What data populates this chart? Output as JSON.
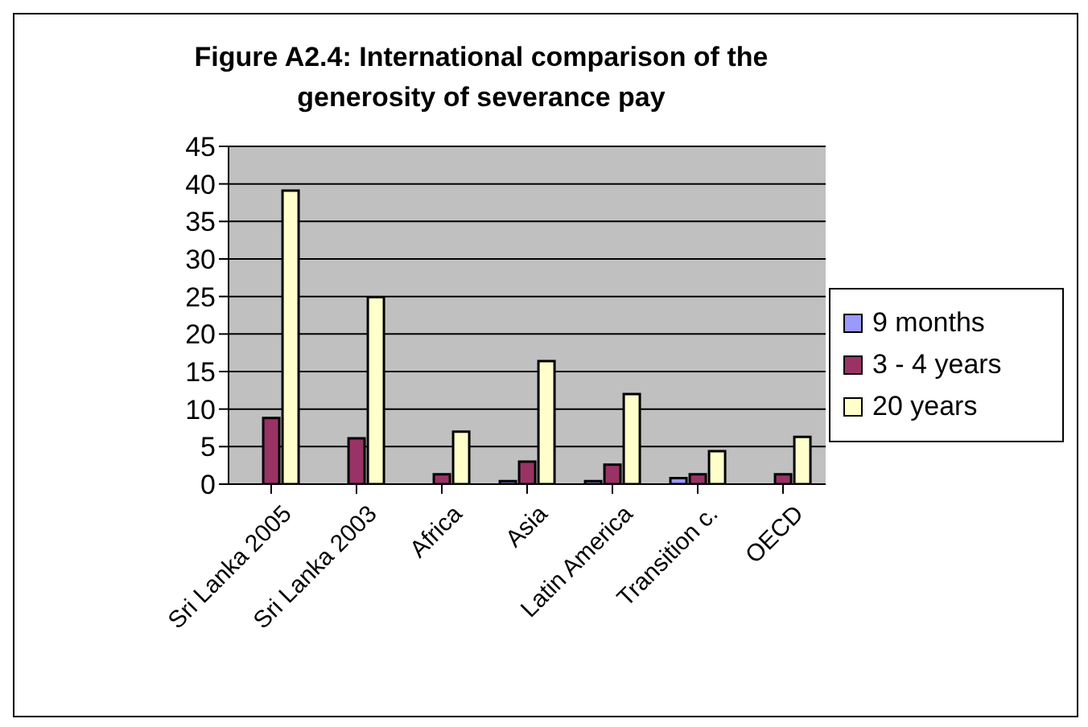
{
  "chart_data": {
    "type": "bar",
    "title": "Figure A2.4: International comparison of the generosity of severance pay",
    "categories": [
      "Sri Lanka 2005",
      "Sri Lanka 2003",
      "Africa",
      "Asia",
      "Latin America",
      "Transition c.",
      "OECD"
    ],
    "series": [
      {
        "name": "9 months",
        "color": "#9999ff",
        "values": [
          0,
          0,
          0,
          0.4,
          0.4,
          0.8,
          0
        ]
      },
      {
        "name": "3 - 4 years",
        "color": "#993366",
        "values": [
          8.8,
          6.1,
          1.3,
          3,
          2.6,
          1.3,
          1.3
        ]
      },
      {
        "name": "20 years",
        "color": "#ffffcc",
        "values": [
          39.1,
          24.9,
          7,
          16.4,
          12,
          4.4,
          6.3
        ]
      }
    ],
    "ylim": [
      0,
      45
    ],
    "yticks": [
      0,
      5,
      10,
      15,
      20,
      25,
      30,
      35,
      40,
      45
    ],
    "grid": "y",
    "legend": "right"
  }
}
